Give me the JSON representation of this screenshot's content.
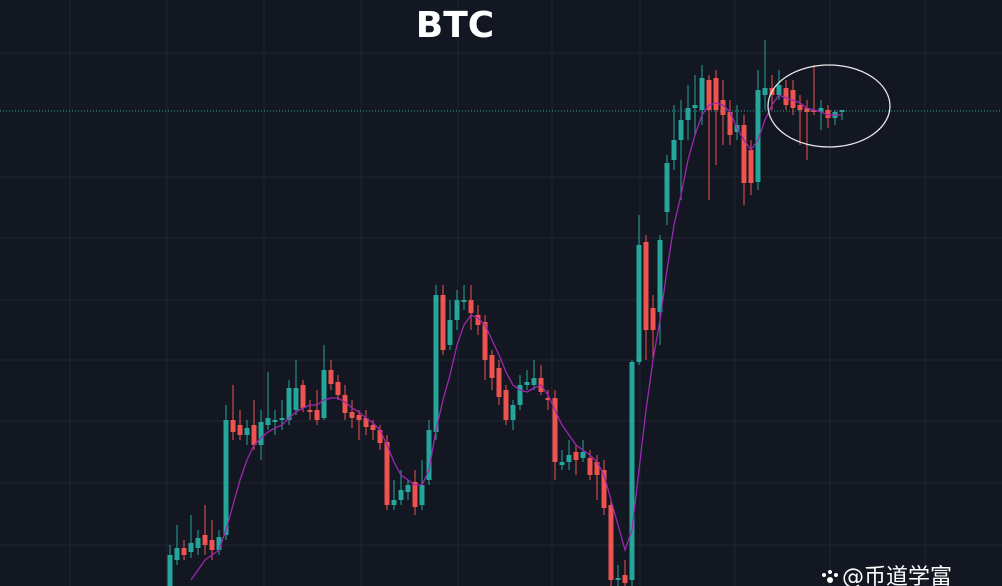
{
  "chart_data": {
    "type": "candlestick",
    "title": "BTC",
    "watermark": "@币道学富",
    "ylim": [
      0,
      586
    ],
    "up_color": "#26a69a",
    "down_color": "#ef5350",
    "price_line": 475,
    "open": [
      -4,
      26,
      38,
      34,
      38,
      51,
      46,
      36,
      51,
      166,
      161,
      151,
      161,
      141,
      161,
      164,
      166,
      166,
      176,
      201,
      176,
      176,
      168,
      216,
      204,
      191,
      174,
      171,
      168,
      161,
      156,
      144,
      81,
      86,
      94,
      104,
      81,
      106,
      154,
      291,
      241,
      266,
      284,
      286,
      271,
      264,
      231,
      218,
      196,
      166,
      181,
      201,
      201,
      208,
      188,
      188,
      121,
      124,
      134,
      128,
      128,
      124,
      116,
      81,
      6,
      11,
      6,
      224,
      344,
      278,
      274,
      374,
      426,
      446,
      466,
      478,
      476,
      506,
      508,
      486,
      474,
      454,
      461,
      436,
      404,
      491,
      498,
      491,
      498,
      496,
      481,
      478,
      476,
      474,
      476,
      468,
      474
    ],
    "high": [
      41,
      61,
      46,
      71,
      56,
      81,
      66,
      56,
      181,
      201,
      176,
      166,
      186,
      176,
      214,
      176,
      186,
      206,
      226,
      206,
      186,
      196,
      241,
      226,
      211,
      201,
      186,
      176,
      176,
      166,
      161,
      151,
      106,
      116,
      106,
      116,
      126,
      166,
      301,
      301,
      286,
      296,
      301,
      301,
      281,
      271,
      236,
      226,
      201,
      186,
      211,
      216,
      226,
      221,
      196,
      196,
      136,
      146,
      141,
      146,
      136,
      131,
      126,
      86,
      21,
      26,
      226,
      371,
      351,
      291,
      351,
      431,
      481,
      486,
      501,
      511,
      521,
      511,
      516,
      506,
      486,
      481,
      471,
      446,
      516,
      546,
      511,
      516,
      506,
      506,
      491,
      486,
      521,
      486,
      481,
      476,
      476
    ],
    "low": [
      -4,
      21,
      26,
      28,
      31,
      31,
      26,
      31,
      46,
      146,
      146,
      141,
      136,
      126,
      156,
      151,
      156,
      161,
      171,
      174,
      166,
      161,
      166,
      196,
      186,
      166,
      158,
      146,
      151,
      146,
      136,
      76,
      76,
      81,
      86,
      71,
      76,
      101,
      146,
      231,
      236,
      256,
      276,
      256,
      251,
      206,
      196,
      181,
      161,
      156,
      176,
      196,
      196,
      191,
      176,
      106,
      116,
      116,
      111,
      124,
      106,
      86,
      71,
      -4,
      -4,
      -4,
      -4,
      221,
      226,
      228,
      241,
      361,
      416,
      386,
      446,
      451,
      461,
      386,
      421,
      441,
      441,
      446,
      381,
      391,
      396,
      476,
      476,
      486,
      476,
      471,
      441,
      426,
      471,
      456,
      458,
      461,
      466
    ],
    "close": [
      31,
      38,
      31,
      43,
      48,
      41,
      36,
      49,
      166,
      154,
      151,
      158,
      141,
      164,
      168,
      166,
      168,
      198,
      198,
      178,
      174,
      166,
      216,
      202,
      191,
      173,
      168,
      166,
      159,
      156,
      143,
      81,
      86,
      96,
      101,
      79,
      101,
      156,
      291,
      236,
      266,
      286,
      286,
      273,
      261,
      226,
      208,
      189,
      166,
      181,
      201,
      204,
      208,
      194,
      186,
      124,
      124,
      131,
      126,
      134,
      111,
      111,
      78,
      6,
      8,
      3,
      224,
      341,
      256,
      256,
      346,
      423,
      446,
      466,
      478,
      481,
      508,
      476,
      476,
      471,
      451,
      461,
      403,
      403,
      496,
      498,
      491,
      501,
      481,
      478,
      476,
      474,
      474,
      478,
      468,
      474,
      476
    ],
    "ma": {
      "color": "#9c27b0",
      "values": [
        null,
        null,
        null,
        6,
        16,
        26,
        31,
        36,
        56,
        81,
        106,
        126,
        141,
        148,
        154,
        158,
        161,
        168,
        174,
        178,
        181,
        181,
        186,
        188,
        188,
        184,
        178,
        174,
        168,
        163,
        156,
        141,
        124,
        111,
        106,
        101,
        101,
        116,
        156,
        186,
        211,
        241,
        261,
        271,
        268,
        261,
        246,
        231,
        214,
        201,
        196,
        194,
        198,
        201,
        191,
        176,
        161,
        151,
        141,
        136,
        131,
        124,
        111,
        86,
        61,
        36,
        56,
        116,
        176,
        226,
        266,
        316,
        361,
        391,
        426,
        451,
        471,
        481,
        483,
        481,
        474,
        458,
        446,
        436,
        446,
        466,
        481,
        491,
        488,
        486,
        483,
        478,
        476,
        474,
        471,
        471,
        471
      ]
    }
  }
}
